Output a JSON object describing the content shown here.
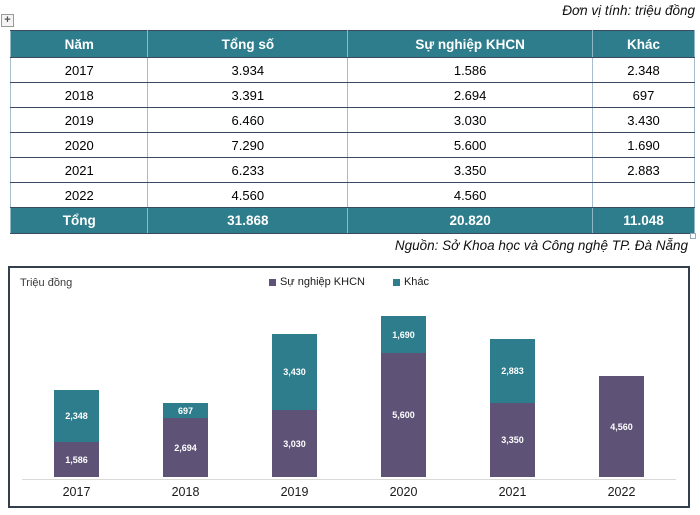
{
  "meta": {
    "unit_note": "Đơn vị tính: triệu đồng",
    "source_note": "Nguồn: Sở Khoa học và Công nghệ TP. Đà Nẵng",
    "move_handle_glyph": "+"
  },
  "table": {
    "headers": [
      "Năm",
      "Tổng số",
      "Sự nghiệp KHCN",
      "Khác"
    ],
    "rows": [
      [
        "2017",
        "3.934",
        "1.586",
        "2.348"
      ],
      [
        "2018",
        "3.391",
        "2.694",
        "697"
      ],
      [
        "2019",
        "6.460",
        "3.030",
        "3.430"
      ],
      [
        "2020",
        "7.290",
        "5.600",
        "1.690"
      ],
      [
        "2021",
        "6.233",
        "3.350",
        "2.883"
      ],
      [
        "2022",
        "4.560",
        "4.560",
        ""
      ]
    ],
    "total_row": [
      "Tổng",
      "31.868",
      "20.820",
      "11.048"
    ]
  },
  "chart_data": {
    "type": "bar",
    "stacked": true,
    "title": "",
    "ylabel": "Triệu đồng",
    "xlabel": "",
    "categories": [
      "2017",
      "2018",
      "2019",
      "2020",
      "2021",
      "2022"
    ],
    "series": [
      {
        "name": "Sự nghiệp KHCN",
        "color": "#5E5377",
        "values": [
          1586,
          2694,
          3030,
          5600,
          3350,
          4560
        ],
        "labels": [
          "1,586",
          "2,694",
          "3,030",
          "5,600",
          "3,350",
          "4,560"
        ]
      },
      {
        "name": "Khác",
        "color": "#2E7D8C",
        "values": [
          2348,
          697,
          3430,
          1690,
          2883,
          null
        ],
        "labels": [
          "2,348",
          "697",
          "3,430",
          "1,690",
          "2,883",
          ""
        ]
      }
    ],
    "legend_position": "top-center",
    "grid": false,
    "ylim": [
      0,
      7290
    ]
  },
  "colors": {
    "table_header_bg": "#2E7D8C",
    "series_purple": "#5E5377",
    "series_teal": "#2E7D8C",
    "axis_line": "#D9D9D9",
    "chart_border": "#333F4C"
  }
}
